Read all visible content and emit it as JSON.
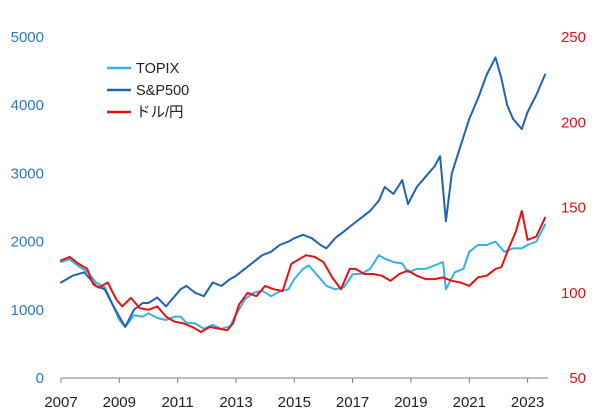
{
  "chart_data": {
    "type": "line",
    "title": "",
    "xlabel": "",
    "ylabel_left": "",
    "ylabel_right": "",
    "x_ticks": [
      "2007",
      "2009",
      "2011",
      "2013",
      "2015",
      "2017",
      "2019",
      "2021",
      "2023"
    ],
    "xlim": [
      2007.0,
      2023.7
    ],
    "y_left": {
      "ticks": [
        "0",
        "1000",
        "2000",
        "3000",
        "4000",
        "5000"
      ],
      "ylim": [
        0,
        5000
      ],
      "color": "#2f78c4"
    },
    "y_right": {
      "ticks": [
        "50",
        "100",
        "150",
        "200",
        "250"
      ],
      "ylim": [
        50,
        250
      ],
      "color": "#e01010"
    },
    "grid": false,
    "legend_placement": "top-left",
    "series": [
      {
        "name": "TOPIX",
        "axis": "left",
        "color": "#33b2ea",
        "x": [
          2007.0,
          2007.3,
          2007.6,
          2007.9,
          2008.2,
          2008.5,
          2008.8,
          2009.0,
          2009.2,
          2009.5,
          2009.8,
          2010.0,
          2010.3,
          2010.6,
          2010.9,
          2011.1,
          2011.3,
          2011.6,
          2011.9,
          2012.2,
          2012.5,
          2012.8,
          2013.0,
          2013.3,
          2013.6,
          2013.9,
          2014.2,
          2014.5,
          2014.8,
          2015.0,
          2015.3,
          2015.5,
          2015.8,
          2016.1,
          2016.4,
          2016.7,
          2017.0,
          2017.3,
          2017.6,
          2017.9,
          2018.1,
          2018.4,
          2018.7,
          2018.9,
          2019.2,
          2019.5,
          2019.8,
          2020.1,
          2020.2,
          2020.5,
          2020.8,
          2021.0,
          2021.3,
          2021.6,
          2021.9,
          2022.2,
          2022.5,
          2022.8,
          2023.0,
          2023.3,
          2023.6
        ],
        "values": [
          1700,
          1740,
          1640,
          1560,
          1400,
          1330,
          1050,
          850,
          750,
          920,
          900,
          950,
          880,
          850,
          900,
          900,
          810,
          800,
          720,
          780,
          720,
          760,
          930,
          1150,
          1250,
          1280,
          1200,
          1270,
          1300,
          1450,
          1600,
          1650,
          1500,
          1350,
          1300,
          1330,
          1520,
          1530,
          1600,
          1800,
          1750,
          1700,
          1680,
          1550,
          1600,
          1600,
          1650,
          1700,
          1300,
          1550,
          1600,
          1850,
          1950,
          1950,
          2000,
          1850,
          1900,
          1900,
          1950,
          2000,
          2250
        ]
      },
      {
        "name": "S&P500",
        "axis": "left",
        "color": "#1f63b3",
        "x": [
          2007.0,
          2007.4,
          2007.8,
          2008.2,
          2008.5,
          2008.8,
          2009.0,
          2009.2,
          2009.5,
          2009.8,
          2010.0,
          2010.3,
          2010.6,
          2010.9,
          2011.1,
          2011.3,
          2011.6,
          2011.9,
          2012.2,
          2012.5,
          2012.8,
          2013.0,
          2013.3,
          2013.6,
          2013.9,
          2014.2,
          2014.5,
          2014.8,
          2015.0,
          2015.3,
          2015.6,
          2015.9,
          2016.1,
          2016.4,
          2016.7,
          2017.0,
          2017.3,
          2017.6,
          2017.9,
          2018.1,
          2018.4,
          2018.7,
          2018.9,
          2019.2,
          2019.5,
          2019.8,
          2020.0,
          2020.2,
          2020.4,
          2020.7,
          2021.0,
          2021.3,
          2021.6,
          2021.9,
          2022.1,
          2022.3,
          2022.5,
          2022.8,
          2023.0,
          2023.3,
          2023.6
        ],
        "values": [
          1400,
          1500,
          1550,
          1350,
          1300,
          1050,
          900,
          750,
          1000,
          1100,
          1100,
          1180,
          1050,
          1200,
          1300,
          1350,
          1250,
          1200,
          1400,
          1350,
          1450,
          1500,
          1600,
          1700,
          1800,
          1850,
          1950,
          2000,
          2050,
          2100,
          2050,
          1950,
          1900,
          2050,
          2150,
          2250,
          2350,
          2450,
          2600,
          2800,
          2700,
          2900,
          2550,
          2800,
          2950,
          3100,
          3250,
          2300,
          3000,
          3400,
          3800,
          4100,
          4450,
          4700,
          4400,
          4000,
          3800,
          3650,
          3900,
          4150,
          4450
        ]
      },
      {
        "name": "ドル/円",
        "axis": "right",
        "color": "#e81010",
        "x": [
          2007.0,
          2007.3,
          2007.6,
          2007.9,
          2008.1,
          2008.3,
          2008.6,
          2008.9,
          2009.1,
          2009.4,
          2009.7,
          2010.0,
          2010.3,
          2010.6,
          2010.9,
          2011.2,
          2011.5,
          2011.8,
          2012.1,
          2012.4,
          2012.7,
          2012.9,
          2013.1,
          2013.4,
          2013.7,
          2014.0,
          2014.3,
          2014.6,
          2014.9,
          2015.1,
          2015.4,
          2015.7,
          2016.0,
          2016.3,
          2016.6,
          2016.9,
          2017.1,
          2017.4,
          2017.7,
          2018.0,
          2018.3,
          2018.6,
          2018.9,
          2019.2,
          2019.5,
          2019.8,
          2020.1,
          2020.4,
          2020.7,
          2021.0,
          2021.3,
          2021.6,
          2021.9,
          2022.1,
          2022.4,
          2022.6,
          2022.8,
          2023.0,
          2023.3,
          2023.6
        ],
        "values": [
          119,
          121,
          117,
          114,
          105,
          103,
          106,
          96,
          92,
          97,
          91,
          90,
          92,
          86,
          83,
          82,
          80,
          77,
          80,
          79,
          78,
          82,
          93,
          100,
          98,
          104,
          102,
          101,
          117,
          119,
          122,
          121,
          118,
          109,
          102,
          114,
          114,
          111,
          111,
          110,
          107,
          111,
          113,
          110,
          108,
          108,
          109,
          107,
          106,
          104,
          109,
          110,
          114,
          115,
          128,
          136,
          148,
          131,
          133,
          144
        ]
      }
    ]
  }
}
